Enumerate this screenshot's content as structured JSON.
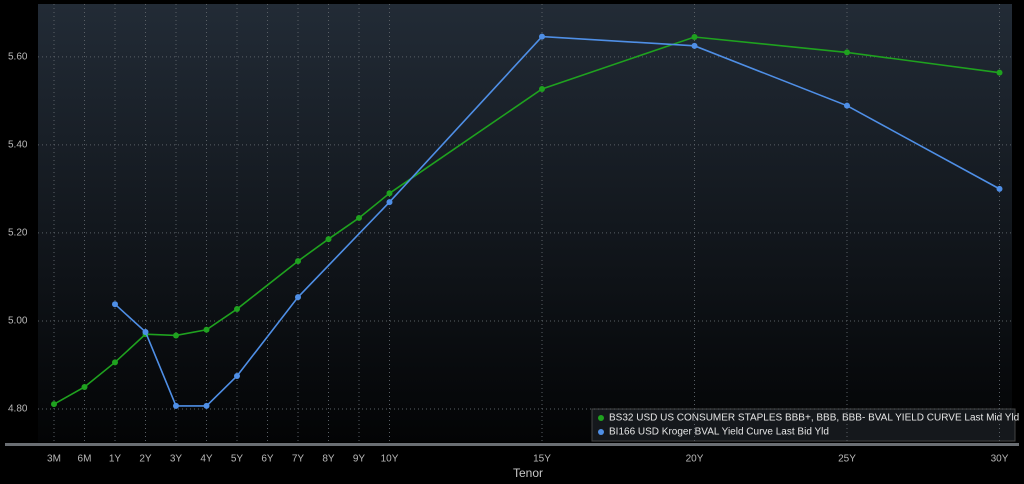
{
  "chart_data": {
    "type": "line",
    "x_label": "Tenor",
    "xticks": [
      {
        "value": 0.25,
        "label": "3M"
      },
      {
        "value": 0.5,
        "label": "6M"
      },
      {
        "value": 1,
        "label": "1Y"
      },
      {
        "value": 2,
        "label": "2Y"
      },
      {
        "value": 3,
        "label": "3Y"
      },
      {
        "value": 4,
        "label": "4Y"
      },
      {
        "value": 5,
        "label": "5Y"
      },
      {
        "value": 6,
        "label": "6Y"
      },
      {
        "value": 7,
        "label": "7Y"
      },
      {
        "value": 8,
        "label": "8Y"
      },
      {
        "value": 9,
        "label": "9Y"
      },
      {
        "value": 10,
        "label": "10Y"
      },
      {
        "value": 15,
        "label": "15Y"
      },
      {
        "value": 20,
        "label": "20Y"
      },
      {
        "value": 25,
        "label": "25Y"
      },
      {
        "value": 30,
        "label": "30Y"
      }
    ],
    "ylim": [
      4.725,
      5.72
    ],
    "yticks": [
      {
        "value": 4.8,
        "label": "4.80"
      },
      {
        "value": 5.0,
        "label": "5.00"
      },
      {
        "value": 5.2,
        "label": "5.20"
      },
      {
        "value": 5.4,
        "label": "5.40"
      },
      {
        "value": 5.6,
        "label": "5.60"
      }
    ],
    "grid": true,
    "legend": "lower right",
    "series": [
      {
        "name": "BS32 USD US CONSUMER STAPLES BBB+, BBB, BBB- BVAL YIELD CURVE Last Mid Yld",
        "color": "#1fa21f",
        "x": [
          0.25,
          0.5,
          1,
          2,
          3,
          4,
          5,
          7,
          8,
          9,
          10,
          15,
          20,
          25,
          30
        ],
        "values": [
          4.811,
          4.85,
          4.906,
          4.97,
          4.967,
          4.98,
          5.027,
          5.136,
          5.186,
          5.234,
          5.29,
          5.527,
          5.645,
          5.61,
          5.564
        ]
      },
      {
        "name": "BI166 USD Kroger BVAL Yield Curve Last Bid Yld",
        "color": "#4f8fe6",
        "x": [
          1,
          2,
          3,
          4,
          5,
          7,
          10,
          15,
          20,
          25,
          30
        ],
        "values": [
          5.038,
          4.975,
          4.807,
          4.807,
          4.875,
          5.054,
          5.27,
          5.646,
          5.625,
          5.489,
          5.3
        ]
      }
    ]
  }
}
